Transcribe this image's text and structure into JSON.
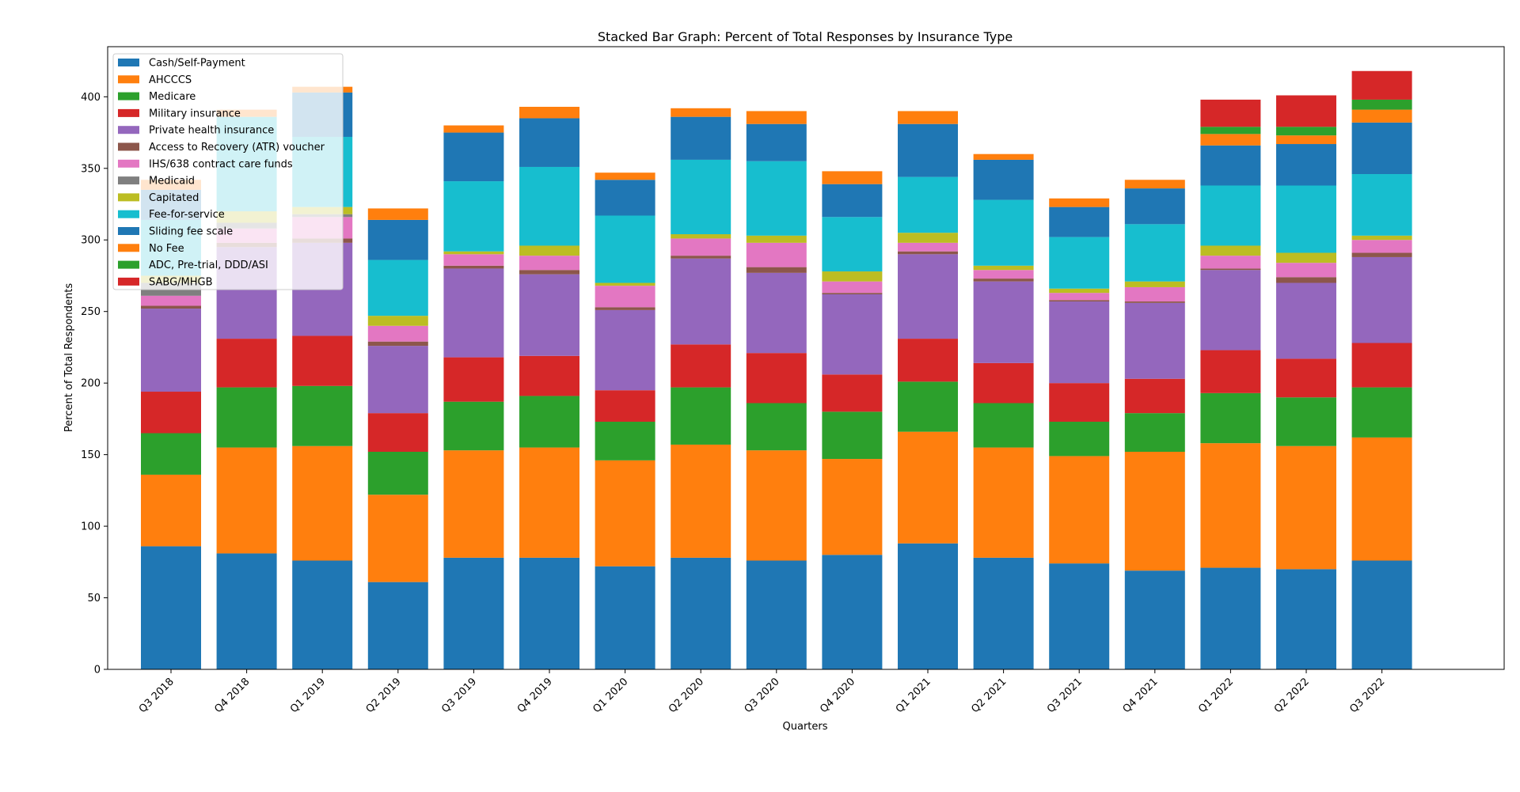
{
  "chart_data": {
    "type": "bar",
    "stacked": true,
    "title": "Stacked Bar Graph: Percent of Total Responses by Insurance Type",
    "xlabel": "Quarters",
    "ylabel": "Percent of Total Respondents",
    "ylim": [
      0,
      435
    ],
    "yticks": [
      0,
      50,
      100,
      150,
      200,
      250,
      300,
      350,
      400
    ],
    "grid": false,
    "legend_position": "top-left",
    "categories": [
      "Q3 2018",
      "Q4 2018",
      "Q1 2019",
      "Q2 2019",
      "Q3 2019",
      "Q4 2019",
      "Q1 2020",
      "Q2 2020",
      "Q3 2020",
      "Q4 2020",
      "Q1 2021",
      "Q2 2021",
      "Q3 2021",
      "Q4 2021",
      "Q1 2022",
      "Q2 2022",
      "Q3 2022"
    ],
    "series": [
      {
        "name": "Cash/Self-Payment",
        "color": "#1f77b4",
        "values": [
          86,
          81,
          76,
          61,
          78,
          78,
          72,
          78,
          76,
          80,
          88,
          78,
          74,
          69,
          71,
          70,
          76
        ]
      },
      {
        "name": "AHCCCS",
        "color": "#ff7f0e",
        "values": [
          50,
          74,
          80,
          61,
          75,
          77,
          74,
          79,
          77,
          67,
          78,
          77,
          75,
          83,
          87,
          86,
          86
        ]
      },
      {
        "name": "Medicare",
        "color": "#2ca02c",
        "values": [
          29,
          42,
          42,
          30,
          34,
          36,
          27,
          40,
          33,
          33,
          35,
          31,
          24,
          27,
          35,
          34,
          35
        ]
      },
      {
        "name": "Military insurance",
        "color": "#d62728",
        "values": [
          29,
          34,
          35,
          27,
          31,
          28,
          22,
          30,
          35,
          26,
          30,
          28,
          27,
          24,
          30,
          27,
          31
        ]
      },
      {
        "name": "Private health insurance",
        "color": "#9467bd",
        "values": [
          58,
          64,
          65,
          47,
          62,
          57,
          56,
          60,
          56,
          56,
          59,
          57,
          57,
          53,
          56,
          53,
          60
        ]
      },
      {
        "name": "Access to Recovery (ATR) voucher",
        "color": "#8c564b",
        "values": [
          2,
          3,
          3,
          3,
          2,
          3,
          2,
          2,
          4,
          1,
          2,
          2,
          1,
          1,
          1,
          4,
          3
        ]
      },
      {
        "name": "IHS/638 contract care funds",
        "color": "#e377c2",
        "values": [
          7,
          10,
          15,
          11,
          8,
          10,
          15,
          12,
          17,
          8,
          6,
          6,
          5,
          10,
          9,
          10,
          9
        ]
      },
      {
        "name": "Medicaid",
        "color": "#7f7f7f",
        "values": [
          9,
          4,
          2,
          0,
          0,
          0,
          0,
          0,
          0,
          0,
          0,
          0,
          0,
          0,
          0,
          0,
          0
        ]
      },
      {
        "name": "Capitated",
        "color": "#bcbd22",
        "values": [
          5,
          8,
          5,
          7,
          2,
          7,
          2,
          3,
          5,
          7,
          7,
          3,
          3,
          4,
          7,
          7,
          3
        ]
      },
      {
        "name": "Fee-for-service",
        "color": "#17becf",
        "values": [
          39,
          66,
          49,
          39,
          49,
          55,
          47,
          52,
          52,
          38,
          39,
          46,
          36,
          40,
          42,
          47,
          43
        ]
      },
      {
        "name": "Sliding fee scale",
        "color": "#1f77b4",
        "values": [
          21,
          0,
          31,
          28,
          34,
          34,
          25,
          30,
          26,
          23,
          37,
          28,
          21,
          25,
          28,
          29,
          36
        ]
      },
      {
        "name": "No Fee",
        "color": "#ff7f0e",
        "values": [
          7,
          5,
          4,
          8,
          5,
          8,
          5,
          6,
          9,
          9,
          9,
          4,
          6,
          6,
          8,
          6,
          9
        ]
      },
      {
        "name": "ADC, Pre-trial, DDD/ASI",
        "color": "#2ca02c",
        "values": [
          0,
          0,
          0,
          0,
          0,
          0,
          0,
          0,
          0,
          0,
          0,
          0,
          0,
          0,
          5,
          6,
          7
        ]
      },
      {
        "name": "SABG/MHGB",
        "color": "#d62728",
        "values": [
          0,
          0,
          0,
          0,
          0,
          0,
          0,
          0,
          0,
          0,
          0,
          0,
          0,
          0,
          19,
          22,
          20
        ]
      }
    ]
  }
}
